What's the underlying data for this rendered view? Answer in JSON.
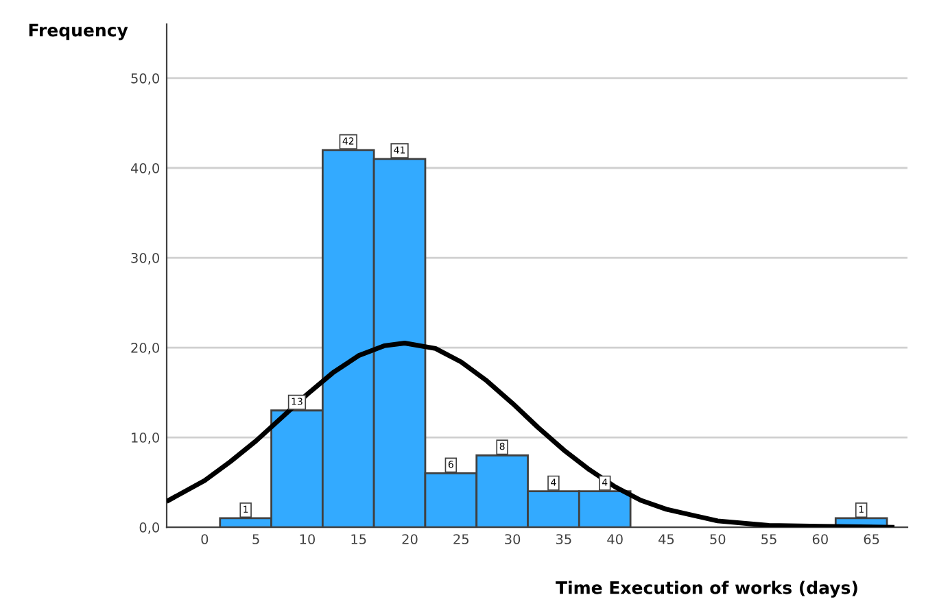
{
  "chart_data": {
    "type": "histogram",
    "xlabel": "Time Execution of works (days)",
    "ylabel": "Frequency",
    "bins": [
      1.5,
      6.5,
      11.5,
      16.5,
      21.5,
      26.5,
      31.5,
      36.5,
      41.5,
      46.5,
      51.5,
      56.5,
      61.5,
      66.5
    ],
    "series": [
      {
        "color": "#33aaff",
        "values": [
          1,
          13,
          42,
          41,
          6,
          8,
          4,
          4,
          0,
          0,
          0,
          0,
          1
        ],
        "value_labels": [
          "1",
          "13",
          "42",
          "41",
          "6",
          "8",
          "4",
          "4",
          null,
          null,
          null,
          null,
          "1"
        ]
      },
      {
        "type": "line",
        "color": "#000000",
        "x": [
          -3.5,
          0,
          2.5,
          5,
          7.5,
          10,
          12.5,
          15,
          17.5,
          19.5,
          22.5,
          25,
          27.5,
          30,
          32.5,
          35,
          37.5,
          40,
          42.5,
          45,
          50,
          55,
          60,
          67
        ],
        "values": [
          3.0,
          5.2,
          7.3,
          9.6,
          12.2,
          14.8,
          17.2,
          19.1,
          20.2,
          20.5,
          19.9,
          18.4,
          16.3,
          13.8,
          11.1,
          8.6,
          6.4,
          4.5,
          3.0,
          2.0,
          0.7,
          0.2,
          0.1,
          0
        ]
      }
    ],
    "xlim": [
      -3.7,
      68.5
    ],
    "xticks": [
      0,
      5,
      10,
      15,
      20,
      25,
      30,
      35,
      40,
      45,
      50,
      55,
      60,
      65
    ],
    "ylim": [
      0,
      56
    ],
    "yticks": [
      {
        "value": 0,
        "label": "0,0"
      },
      {
        "value": 10,
        "label": "10,0"
      },
      {
        "value": 20,
        "label": "20,0"
      },
      {
        "value": 30,
        "label": "30,0"
      },
      {
        "value": 40,
        "label": "40,0"
      },
      {
        "value": 50,
        "label": "50,0"
      }
    ],
    "grid": "y"
  }
}
